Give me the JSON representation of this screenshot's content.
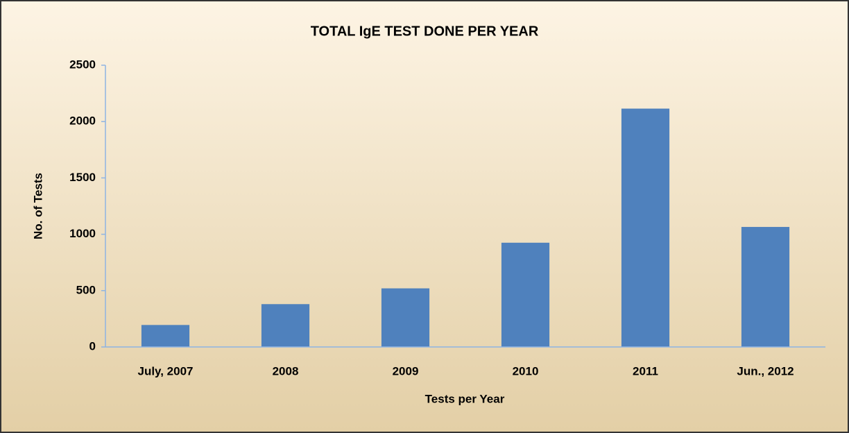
{
  "chart_data": {
    "type": "bar",
    "title": "TOTAL IgE TEST DONE PER YEAR",
    "x_label": "Tests per Year",
    "y_label": "No. of Tests",
    "categories": [
      "July, 2007",
      "2008",
      "2009",
      "2010",
      "2011",
      "Jun., 2012"
    ],
    "values": [
      195,
      380,
      520,
      925,
      2115,
      1065
    ],
    "color": "#4f81bd",
    "ylim": [
      0,
      2500
    ],
    "yticks": [
      0,
      500,
      1000,
      1500,
      2000,
      2500
    ],
    "grid": false
  }
}
